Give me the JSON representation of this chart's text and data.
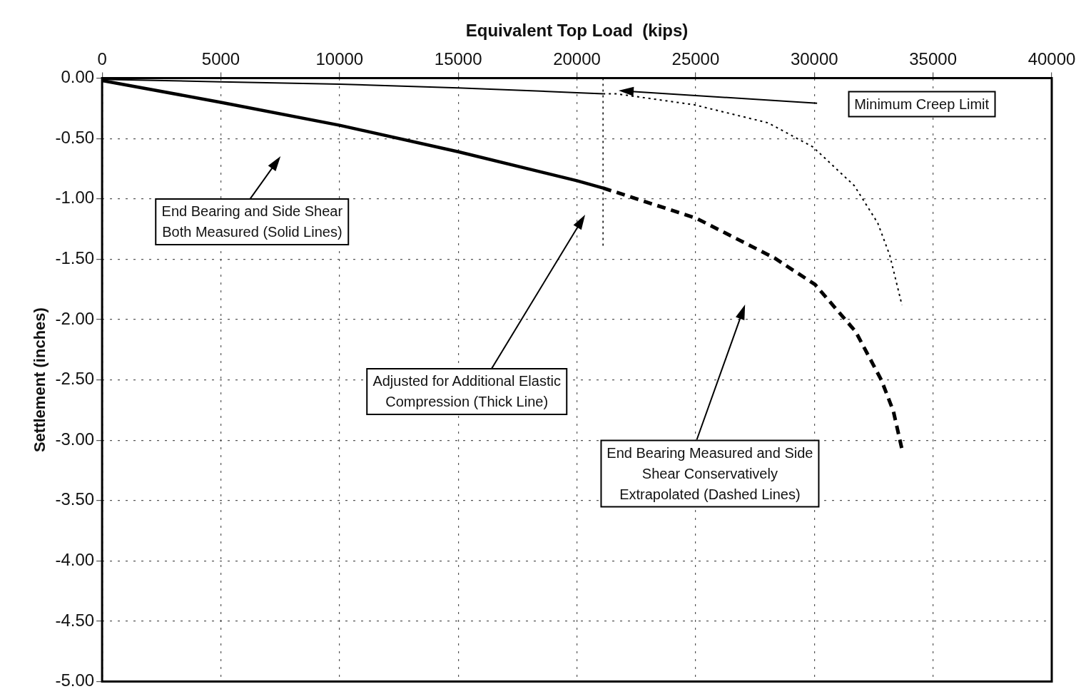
{
  "chart_data": {
    "type": "line",
    "xlabel": "Equivalent Top Load  (kips)",
    "ylabel": "Settlement (inches)",
    "xlim": [
      0,
      40000
    ],
    "xticks": [
      0,
      5000,
      10000,
      15000,
      20000,
      25000,
      30000,
      35000,
      40000
    ],
    "ylim": [
      -5,
      0
    ],
    "yticks": [
      {
        "value": 0,
        "label": "0.00"
      },
      {
        "value": -0.5,
        "label": "-0.50"
      },
      {
        "value": -1,
        "label": "-1.00"
      },
      {
        "value": -1.5,
        "label": "-1.50"
      },
      {
        "value": -2,
        "label": "-2.00"
      },
      {
        "value": -2.5,
        "label": "-2.50"
      },
      {
        "value": -3,
        "label": "-3.00"
      },
      {
        "value": -3.5,
        "label": "-3.50"
      },
      {
        "value": -4,
        "label": "-4.00"
      },
      {
        "value": -4.5,
        "label": "-4.50"
      },
      {
        "value": -5,
        "label": "-5.00"
      }
    ],
    "grid": true,
    "legend": false,
    "marker": "none",
    "series": [
      {
        "color": "#000000",
        "line_style": "solid",
        "x": [
          0,
          5000,
          10000,
          15000,
          20000,
          21100
        ],
        "values": [
          -0.01,
          -0.03,
          -0.05,
          -0.08,
          -0.12,
          -0.13
        ]
      },
      {
        "color": "#000000",
        "line_style": "solid",
        "x": [
          0,
          5000,
          10000,
          15000,
          20000,
          21100
        ],
        "values": [
          -0.02,
          -0.2,
          -0.39,
          -0.61,
          -0.85,
          -0.91
        ]
      },
      {
        "color": "#000000",
        "line_style": "dotted",
        "x": [
          21100,
          21680,
          24930,
          28050,
          29940,
          31680,
          32670,
          33180,
          33690
        ],
        "values": [
          -0.13,
          -0.13,
          -0.22,
          -0.37,
          -0.57,
          -0.89,
          -1.2,
          -1.47,
          -1.88
        ]
      },
      {
        "color": "#000000",
        "line_style": "dashed",
        "x": [
          21100,
          25020,
          28320,
          30030,
          31740,
          32820,
          33330,
          33720
        ],
        "values": [
          -0.91,
          -1.16,
          -1.49,
          -1.71,
          -2.1,
          -2.5,
          -2.76,
          -3.1
        ]
      },
      {
        "color": "#000000",
        "line_style": "dotted",
        "x": [
          21100,
          21100
        ],
        "values": [
          0,
          -1.4
        ]
      }
    ],
    "annotations": [
      "End Bearing and Side Shear\nBoth Measured (Solid Lines)",
      "Adjusted for Additional Elastic\nCompression (Thick Line)",
      "End Bearing Measured and Side\nShear Conservatively\nExtrapolated (Dashed Lines)",
      "Minimum Creep Limit"
    ]
  }
}
